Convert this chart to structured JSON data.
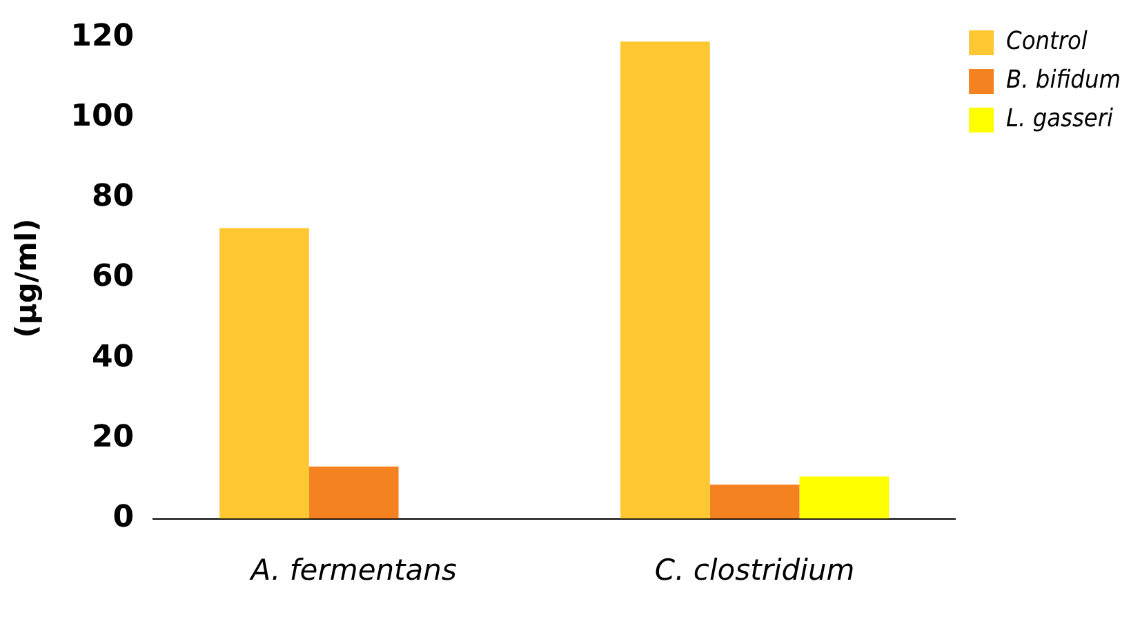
{
  "chart_data": {
    "type": "bar",
    "ylabel": "(µg/ml)",
    "categories": [
      "A. fermentans",
      "C. clostridium"
    ],
    "series": [
      {
        "name": "Control",
        "color": "#ffc832",
        "values": [
          72.5,
          119
        ]
      },
      {
        "name": "B. bifidum",
        "color": "#f58220",
        "values": [
          13,
          8.5
        ]
      },
      {
        "name": "L. gasseri",
        "color": "#ffff00",
        "values": [
          null,
          10.5
        ]
      }
    ],
    "ylim": [
      0,
      120
    ],
    "yticks": [
      0,
      20,
      40,
      60,
      80,
      100,
      120
    ],
    "grid": false,
    "legend": "top right"
  }
}
